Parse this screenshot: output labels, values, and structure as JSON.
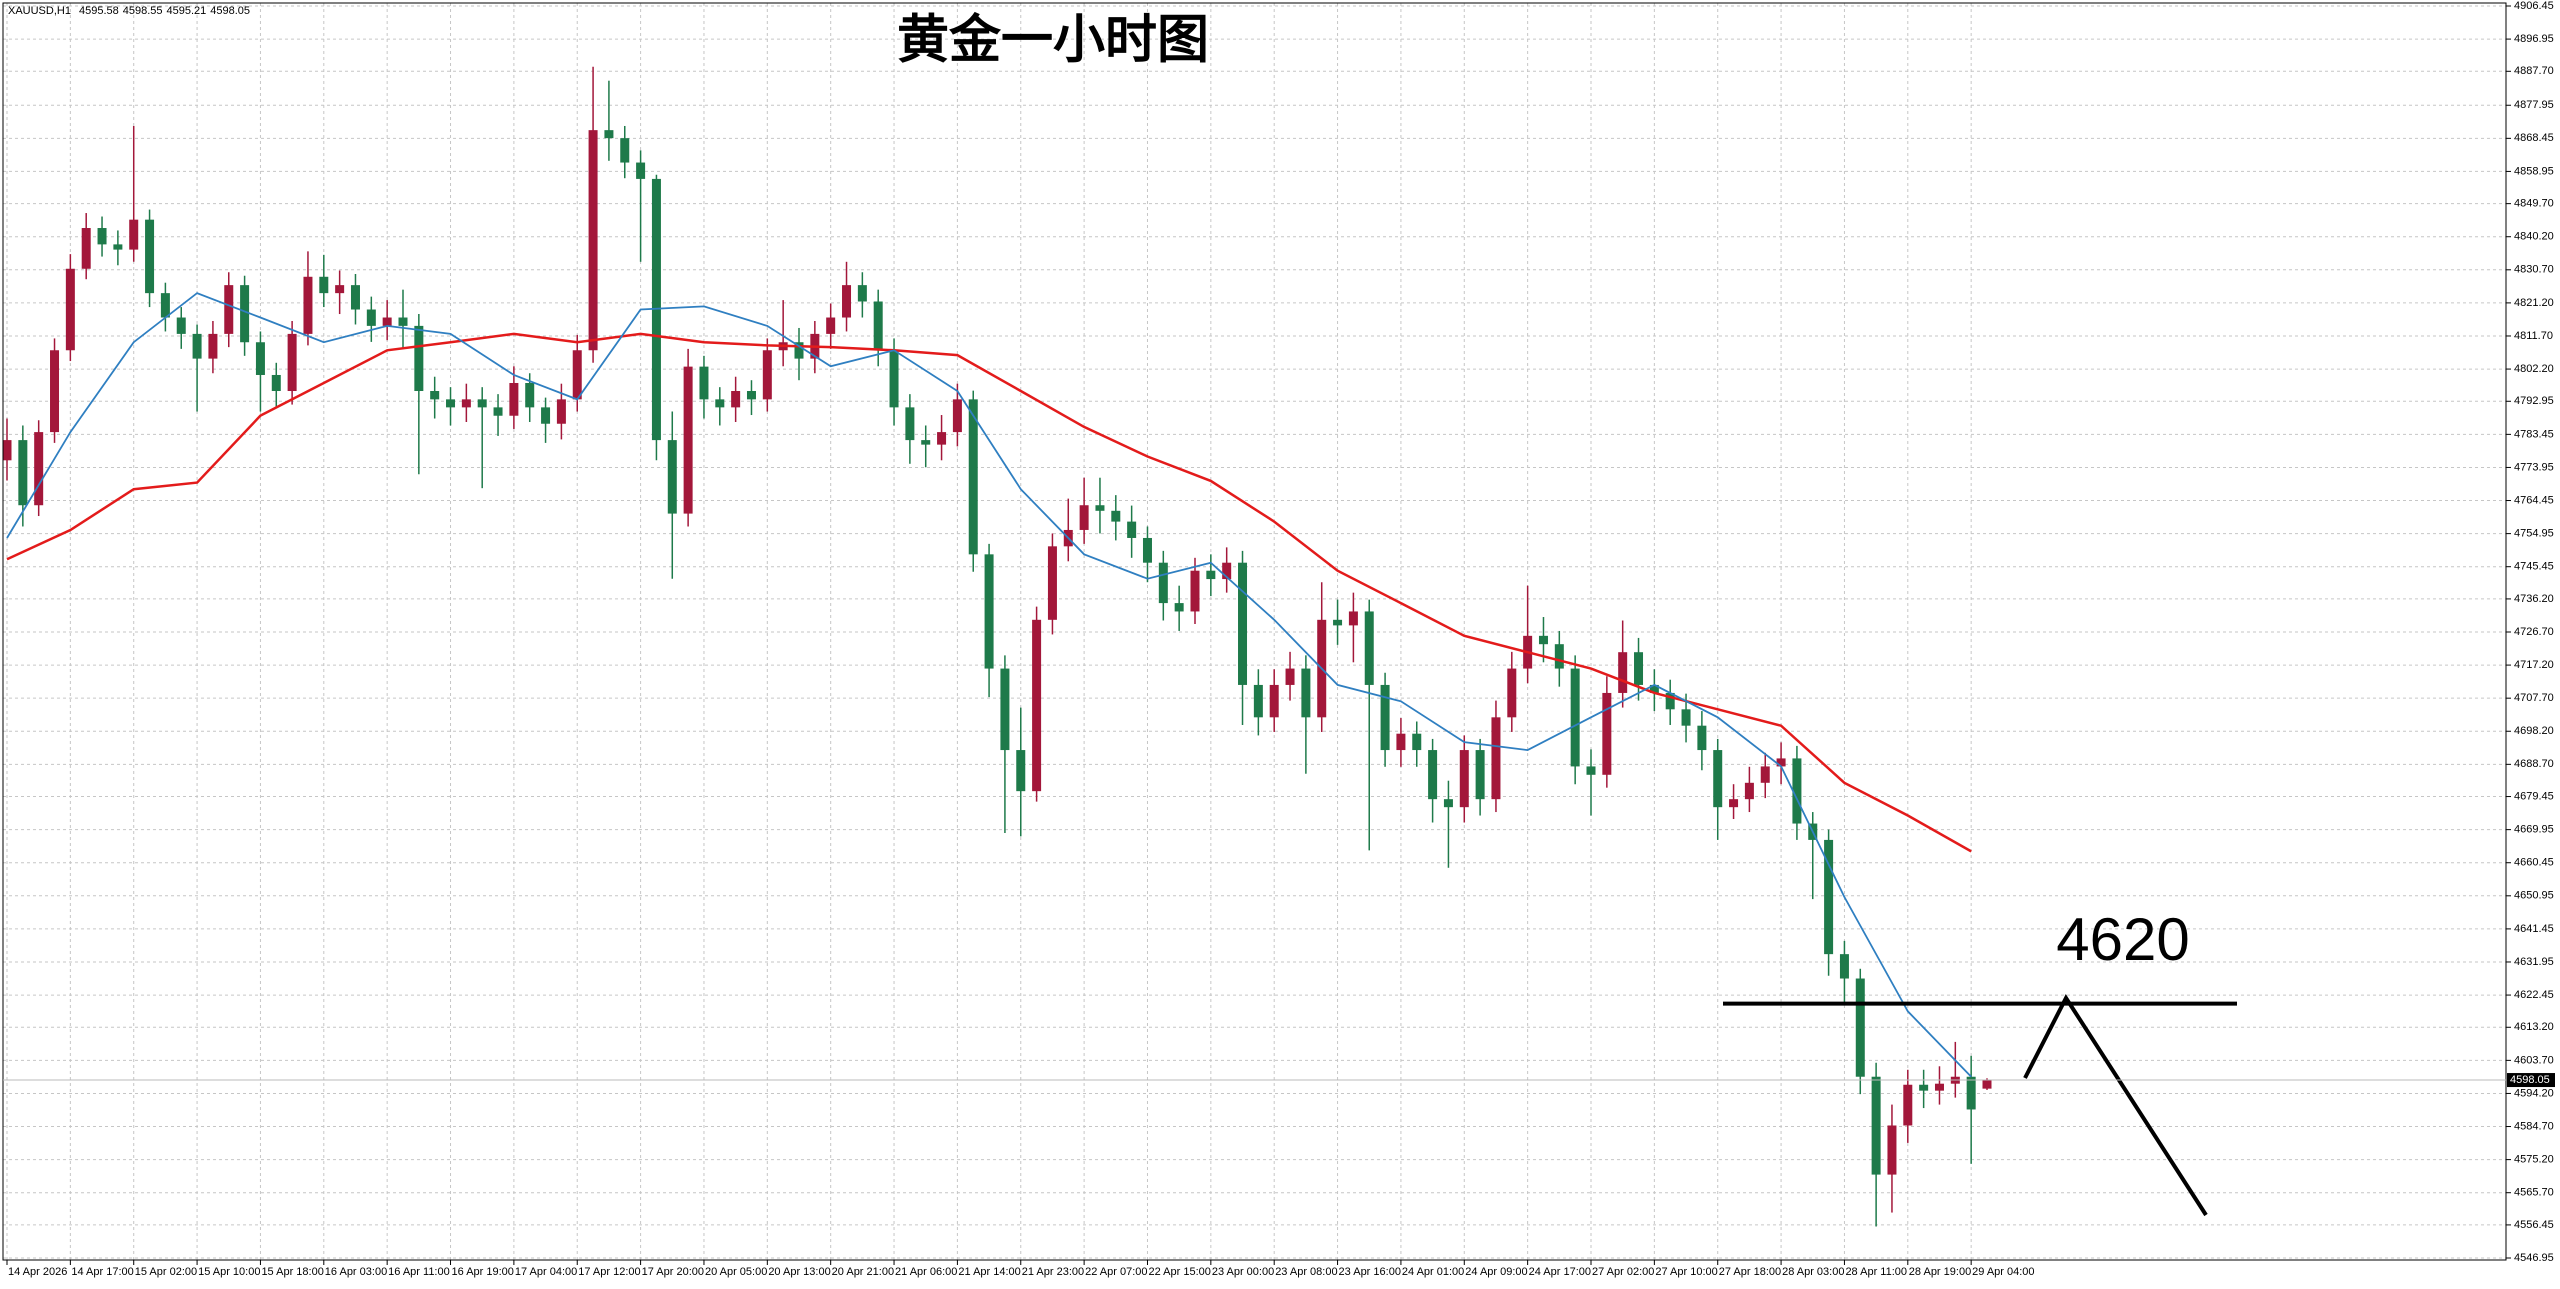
{
  "chart_data": {
    "type": "candlestick",
    "title": "黄金一小时图",
    "symbol": "XAUUSD,H1",
    "categories": [
      "14 Apr 2026",
      null,
      null,
      null,
      "14 Apr 17:00",
      null,
      null,
      null,
      "15 Apr 02:00",
      null,
      null,
      null,
      "15 Apr 10:00",
      null,
      null,
      null,
      "15 Apr 18:00",
      null,
      null,
      null,
      "16 Apr 03:00",
      null,
      null,
      null,
      "16 Apr 11:00",
      null,
      null,
      null,
      "16 Apr 19:00",
      null,
      null,
      null,
      "17 Apr 04:00",
      null,
      null,
      null,
      "17 Apr 12:00",
      null,
      null,
      null,
      "17 Apr 20:00",
      null,
      null,
      null,
      "20 Apr 05:00",
      null,
      null,
      null,
      "20 Apr 13:00",
      null,
      null,
      null,
      "20 Apr 21:00",
      null,
      null,
      null,
      "21 Apr 06:00",
      null,
      null,
      null,
      "21 Apr 14:00",
      null,
      null,
      null,
      "21 Apr 23:00",
      null,
      null,
      null,
      "22 Apr 07:00",
      null,
      null,
      null,
      "22 Apr 15:00",
      null,
      null,
      null,
      "23 Apr 00:00",
      null,
      null,
      null,
      "23 Apr 08:00",
      null,
      null,
      null,
      "23 Apr 16:00",
      null,
      null,
      null,
      "24 Apr 01:00",
      null,
      null,
      null,
      "24 Apr 09:00",
      null,
      null,
      null,
      "24 Apr 17:00",
      null,
      null,
      null,
      "27 Apr 02:00",
      null,
      null,
      null,
      "27 Apr 10:00",
      null,
      null,
      null,
      "27 Apr 18:00",
      null,
      null,
      null,
      "28 Apr 03:00",
      null,
      null,
      null,
      "28 Apr 11:00",
      null,
      null,
      null,
      "28 Apr 19:00",
      null,
      null,
      null,
      "29 Apr 04:00",
      null
    ],
    "open": [
      4776.0,
      4781.8,
      4763.1,
      4784.1,
      4807.6,
      4831.0,
      4842.7,
      4838.0,
      4836.5,
      4845.1,
      4824.0,
      4817.0,
      4812.3,
      4805.2,
      4812.3,
      4826.3,
      4809.9,
      4800.5,
      4795.9,
      4812.3,
      4828.7,
      4824.0,
      4826.3,
      4819.3,
      4814.6,
      4817.0,
      4814.6,
      4795.9,
      4793.5,
      4791.2,
      4793.5,
      4791.2,
      4788.8,
      4798.2,
      4791.2,
      4786.5,
      4793.5,
      4807.6,
      4870.8,
      4868.5,
      4861.5,
      4856.8,
      4781.8,
      4760.7,
      4802.9,
      4793.5,
      4791.2,
      4795.9,
      4793.5,
      4807.6,
      4809.9,
      4805.2,
      4812.3,
      4817.0,
      4826.3,
      4821.6,
      4807.6,
      4791.2,
      4781.8,
      4780.5,
      4784.1,
      4793.5,
      4749.0,
      4716.2,
      4692.8,
      4681.0,
      4730.2,
      4751.3,
      4756.0,
      4763.1,
      4761.5,
      4758.4,
      4753.7,
      4746.6,
      4735.0,
      4732.6,
      4744.3,
      4741.9,
      4746.6,
      4711.5,
      4702.2,
      4711.5,
      4716.2,
      4702.2,
      4730.2,
      4728.6,
      4732.6,
      4711.5,
      4692.8,
      4697.5,
      4692.8,
      4678.7,
      4676.4,
      4692.8,
      4678.7,
      4702.2,
      4716.2,
      4725.6,
      4723.2,
      4716.2,
      4688.1,
      4685.7,
      4709.2,
      4720.9,
      4711.5,
      4709.2,
      4704.5,
      4699.8,
      4692.8,
      4676.4,
      4678.7,
      4683.4,
      4688.1,
      4690.4,
      4671.7,
      4667.0,
      4634.2,
      4627.2,
      4599.0,
      4570.9,
      4585.0,
      4596.7,
      4595.0,
      4597.0,
      4599.0,
      4595.58
    ],
    "high": [
      4788.0,
      4786.0,
      4787.5,
      4811.0,
      4835.2,
      4847.0,
      4846.0,
      4842.0,
      4872.0,
      4848.0,
      4827.0,
      4820.0,
      4815.0,
      4816.0,
      4830.0,
      4829.0,
      4813.0,
      4804.0,
      4816.0,
      4836.0,
      4835.0,
      4830.5,
      4829.5,
      4823.0,
      4822.0,
      4825.0,
      4818.0,
      4800.0,
      4797.0,
      4798.0,
      4797.0,
      4795.0,
      4803.0,
      4801.0,
      4794.0,
      4798.0,
      4812.0,
      4889.0,
      4885.0,
      4872.0,
      4865.0,
      4858.0,
      4790.0,
      4808.0,
      4806.0,
      4797.0,
      4800.0,
      4799.0,
      4811.0,
      4822.0,
      4814.0,
      4816.0,
      4821.0,
      4833.0,
      4830.0,
      4825.0,
      4811.0,
      4795.0,
      4786.0,
      4789.0,
      4798.0,
      4796.0,
      4752.0,
      4720.0,
      4705.0,
      4734.0,
      4755.0,
      4765.0,
      4771.0,
      4771.0,
      4766.0,
      4763.0,
      4757.0,
      4750.0,
      4740.0,
      4748.0,
      4749.0,
      4751.0,
      4750.0,
      4716.0,
      4716.0,
      4721.0,
      4720.0,
      4741.0,
      4736.0,
      4738.0,
      4736.0,
      4715.0,
      4702.0,
      4701.0,
      4696.0,
      4684.0,
      4697.0,
      4696.0,
      4707.0,
      4721.0,
      4740.0,
      4731.0,
      4727.0,
      4720.0,
      4693.0,
      4714.0,
      4730.0,
      4725.0,
      4716.0,
      4713.0,
      4709.0,
      4704.0,
      4696.0,
      4683.0,
      4688.0,
      4692.0,
      4695.0,
      4694.0,
      4675.0,
      4670.0,
      4638.0,
      4630.0,
      4603.0,
      4591.0,
      4601.0,
      4601.0,
      4602.0,
      4609.0,
      4605.0,
      4598.55
    ],
    "low": [
      4770.2,
      4757.0,
      4760.0,
      4781.0,
      4804.5,
      4828.0,
      4834.5,
      4832.0,
      4833.0,
      4820.0,
      4813.0,
      4808.0,
      4790.0,
      4801.0,
      4808.5,
      4806.0,
      4790.0,
      4791.0,
      4792.0,
      4809.0,
      4820.0,
      4818.0,
      4815.0,
      4810.0,
      4810.5,
      4808.0,
      4772.0,
      4788.0,
      4786.0,
      4787.0,
      4768.0,
      4783.0,
      4785.0,
      4787.0,
      4781.0,
      4782.0,
      4790.0,
      4804.0,
      4862.0,
      4857.0,
      4833.0,
      4776.0,
      4742.0,
      4757.0,
      4788.0,
      4786.0,
      4787.0,
      4789.0,
      4790.0,
      4803.0,
      4799.0,
      4801.0,
      4808.0,
      4813.0,
      4817.0,
      4803.0,
      4786.0,
      4775.0,
      4774.0,
      4776.0,
      4780.0,
      4744.0,
      4708.0,
      4669.0,
      4668.0,
      4678.0,
      4726.0,
      4747.0,
      4752.0,
      4755.0,
      4753.0,
      4748.0,
      4741.0,
      4730.0,
      4727.0,
      4729.0,
      4737.0,
      4738.0,
      4700.0,
      4697.0,
      4698.0,
      4707.0,
      4686.0,
      4698.0,
      4723.0,
      4718.0,
      4664.0,
      4688.0,
      4688.0,
      4688.0,
      4672.0,
      4659.0,
      4672.0,
      4674.0,
      4675.0,
      4698.0,
      4712.0,
      4718.0,
      4711.0,
      4683.0,
      4674.0,
      4682.0,
      4705.0,
      4707.0,
      4704.0,
      4700.0,
      4695.0,
      4687.0,
      4667.0,
      4673.0,
      4675.0,
      4679.0,
      4683.0,
      4667.0,
      4650.0,
      4628.0,
      4620.0,
      4594.0,
      4556.0,
      4560.0,
      4580.0,
      4590.0,
      4591.0,
      4593.0,
      4574.0,
      4595.21
    ],
    "close": [
      4781.8,
      4763.1,
      4784.1,
      4807.6,
      4831.0,
      4842.7,
      4838.0,
      4836.5,
      4845.1,
      4824.0,
      4817.0,
      4812.3,
      4805.2,
      4812.3,
      4826.3,
      4809.9,
      4800.5,
      4795.9,
      4812.3,
      4828.7,
      4824.0,
      4826.3,
      4819.3,
      4814.6,
      4817.0,
      4814.6,
      4795.9,
      4793.5,
      4791.2,
      4793.5,
      4791.2,
      4788.8,
      4798.2,
      4791.2,
      4786.5,
      4793.5,
      4807.6,
      4870.8,
      4868.5,
      4861.5,
      4856.8,
      4781.8,
      4760.7,
      4802.9,
      4793.5,
      4791.2,
      4795.9,
      4793.5,
      4807.6,
      4809.9,
      4805.2,
      4812.3,
      4817.0,
      4826.3,
      4821.6,
      4807.6,
      4791.2,
      4781.8,
      4780.5,
      4784.1,
      4793.5,
      4749.0,
      4716.2,
      4692.8,
      4681.0,
      4730.2,
      4751.3,
      4756.0,
      4763.1,
      4761.5,
      4758.4,
      4753.7,
      4746.6,
      4735.0,
      4732.6,
      4744.3,
      4741.9,
      4746.6,
      4711.5,
      4702.2,
      4711.5,
      4716.2,
      4702.2,
      4730.2,
      4728.6,
      4732.6,
      4711.5,
      4692.8,
      4697.5,
      4692.8,
      4678.7,
      4676.4,
      4692.8,
      4678.7,
      4702.2,
      4716.2,
      4725.6,
      4723.2,
      4716.2,
      4688.1,
      4685.7,
      4709.2,
      4720.9,
      4711.5,
      4709.2,
      4704.5,
      4699.8,
      4692.8,
      4676.4,
      4678.7,
      4683.4,
      4688.1,
      4690.4,
      4671.7,
      4667.0,
      4634.2,
      4627.2,
      4599.0,
      4570.9,
      4585.0,
      4596.7,
      4595.0,
      4597.0,
      4599.0,
      4589.6,
      4598.05
    ],
    "up_color": "#a3173a",
    "down_color": "#1e7a4a",
    "lines": [
      {
        "color": "#e31b1b",
        "x": [
          "14 Apr 2026",
          "14 Apr 17:00",
          "15 Apr 02:00",
          "15 Apr 10:00",
          "15 Apr 18:00",
          "16 Apr 03:00",
          "16 Apr 11:00",
          "16 Apr 19:00",
          "17 Apr 04:00",
          "17 Apr 12:00",
          "17 Apr 20:00",
          "20 Apr 05:00",
          "20 Apr 13:00",
          "20 Apr 21:00",
          "21 Apr 06:00",
          "21 Apr 14:00",
          "21 Apr 23:00",
          "22 Apr 07:00",
          "22 Apr 15:00",
          "23 Apr 00:00",
          "23 Apr 08:00",
          "23 Apr 16:00",
          "24 Apr 01:00",
          "24 Apr 09:00",
          "24 Apr 17:00",
          "27 Apr 02:00",
          "27 Apr 10:00",
          "27 Apr 18:00",
          "28 Apr 03:00",
          "28 Apr 11:00",
          "28 Apr 19:00",
          "29 Apr 04:00"
        ],
        "values": [
          4747.6,
          4756.0,
          4767.7,
          4769.6,
          4788.8,
          4798.2,
          4807.6,
          4809.9,
          4812.3,
          4809.9,
          4812.3,
          4809.9,
          4809.0,
          4808.5,
          4807.6,
          4806.2,
          4795.9,
          4785.6,
          4777.1,
          4770.1,
          4758.4,
          4744.3,
          4735.0,
          4725.6,
          4720.9,
          4716.2,
          4709.2,
          4704.5,
          4699.8,
          4683.4,
          4674.0,
          4663.7
        ]
      },
      {
        "color": "#2f7fc1",
        "x": [
          "14 Apr 2026",
          "14 Apr 17:00",
          "15 Apr 02:00",
          "15 Apr 10:00",
          "15 Apr 18:00",
          "16 Apr 03:00",
          "16 Apr 11:00",
          "16 Apr 19:00",
          "17 Apr 04:00",
          "17 Apr 12:00",
          "17 Apr 20:00",
          "20 Apr 05:00",
          "20 Apr 13:00",
          "20 Apr 21:00",
          "21 Apr 06:00",
          "21 Apr 14:00",
          "21 Apr 23:00",
          "22 Apr 07:00",
          "22 Apr 15:00",
          "23 Apr 00:00",
          "23 Apr 08:00",
          "23 Apr 16:00",
          "24 Apr 01:00",
          "24 Apr 09:00",
          "24 Apr 17:00",
          "27 Apr 02:00",
          "27 Apr 10:00",
          "27 Apr 18:00",
          "28 Apr 03:00",
          "28 Apr 11:00",
          "28 Apr 19:00",
          "29 Apr 04:00"
        ],
        "values": [
          4753.7,
          4784.1,
          4809.9,
          4824.0,
          4817.0,
          4809.9,
          4814.6,
          4812.3,
          4800.5,
          4793.5,
          4819.3,
          4820.2,
          4814.6,
          4803.0,
          4807.6,
          4795.9,
          4767.7,
          4749.0,
          4742.0,
          4746.6,
          4730.2,
          4711.5,
          4706.8,
          4695.1,
          4692.8,
          4702.2,
          4711.5,
          4702.2,
          4688.1,
          4650.6,
          4617.8,
          4599.0
        ]
      }
    ],
    "level": 4620,
    "ylim": [
      4546.95,
      4906.45
    ],
    "yticks": [
      4546.95,
      4556.45,
      {
        "value": 4565.7,
        "label": "4565.70"
      },
      {
        "value": 4575.2,
        "label": "4575.20"
      },
      {
        "value": 4584.7,
        "label": "4584.70"
      },
      {
        "value": 4594.2,
        "label": "4594.20"
      },
      {
        "value": 4603.7,
        "label": "4603.70"
      },
      {
        "value": 4613.2,
        "label": "4613.20"
      },
      4622.45,
      4631.95,
      4641.45,
      4650.95,
      4660.45,
      4669.95,
      4679.45,
      {
        "value": 4688.7,
        "label": "4688.70"
      },
      {
        "value": 4698.2,
        "label": "4698.20"
      },
      {
        "value": 4707.7,
        "label": "4707.70"
      },
      {
        "value": 4717.2,
        "label": "4717.20"
      },
      {
        "value": 4726.7,
        "label": "4726.70"
      },
      {
        "value": 4736.2,
        "label": "4736.20"
      },
      4745.45,
      4754.95,
      4764.45,
      4773.95,
      4783.45,
      4792.95,
      {
        "value": 4802.2,
        "label": "4802.20"
      },
      {
        "value": 4811.7,
        "label": "4811.70"
      },
      {
        "value": 4821.2,
        "label": "4821.20"
      },
      {
        "value": 4830.7,
        "label": "4830.70"
      },
      {
        "value": 4840.2,
        "label": "4840.20"
      },
      {
        "value": 4849.7,
        "label": "4849.70"
      },
      4858.95,
      4868.45,
      4877.95,
      {
        "value": 4887.7,
        "label": "4887.70"
      },
      4896.95,
      4906.45
    ],
    "grid": true
  }
}
